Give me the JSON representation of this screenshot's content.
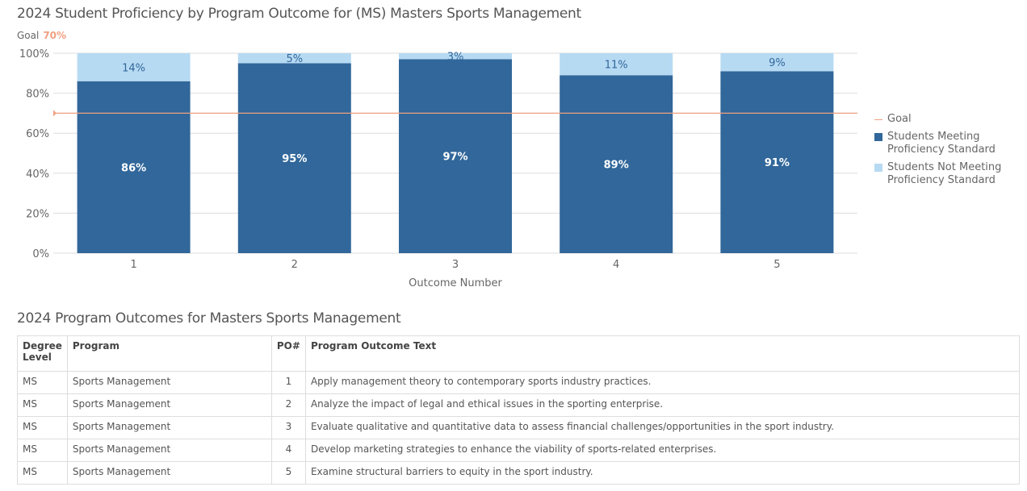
{
  "chart_data": {
    "type": "bar",
    "stacked": true,
    "title": "2024 Student Proficiency by Program Outcome for (MS) Masters Sports Management",
    "goal_label": "Goal",
    "goal_value_label": "70%",
    "goal": 70,
    "xlabel": "Outcome Number",
    "ylabel": "",
    "ylim": [
      0,
      100
    ],
    "yticks": [
      "0%",
      "20%",
      "40%",
      "60%",
      "80%",
      "100%"
    ],
    "categories": [
      "1",
      "2",
      "3",
      "4",
      "5"
    ],
    "series": [
      {
        "name": "Students Meeting Proficiency Standard",
        "values": [
          86,
          95,
          97,
          89,
          91
        ],
        "labels": [
          "86%",
          "95%",
          "97%",
          "89%",
          "91%"
        ],
        "color": "#31679a"
      },
      {
        "name": "Students Not Meeting Proficiency Standard",
        "values": [
          14,
          5,
          3,
          11,
          9
        ],
        "labels": [
          "14%",
          "5%",
          "3%",
          "11%",
          "9%"
        ],
        "color": "#b7daf3"
      }
    ],
    "goal_color": "#f0a080",
    "grid": true,
    "legend_position": "right",
    "legend": {
      "goal": "Goal",
      "meeting": "Students Meeting Proficiency Standard",
      "not_meeting": "Students Not Meeting Proficiency Standard"
    }
  },
  "table": {
    "title": "2024 Program Outcomes for Masters Sports Management",
    "headers": [
      "Degree Level",
      "Program",
      "PO#",
      "Program Outcome Text"
    ],
    "rows": [
      [
        "MS",
        "Sports Management",
        "1",
        "Apply management theory to contemporary sports industry practices."
      ],
      [
        "MS",
        "Sports Management",
        "2",
        "Analyze the impact of legal and ethical issues in the sporting enterprise."
      ],
      [
        "MS",
        "Sports Management",
        "3",
        "Evaluate qualitative and quantitative data to assess financial challenges/opportunities in the sport industry."
      ],
      [
        "MS",
        "Sports Management",
        "4",
        "Develop marketing strategies to enhance the viability of sports-related enterprises."
      ],
      [
        "MS",
        "Sports Management",
        "5",
        "Examine structural barriers to equity in the sport industry."
      ]
    ]
  }
}
